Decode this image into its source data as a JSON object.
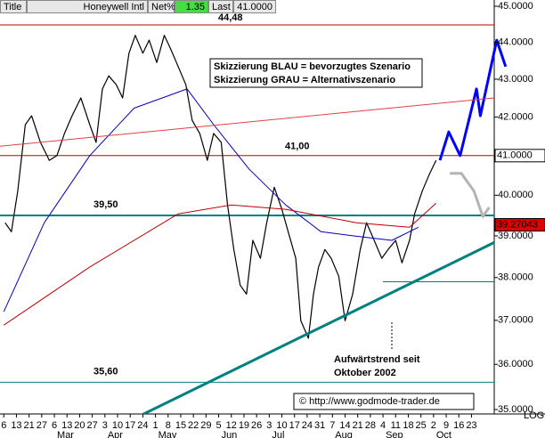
{
  "header": {
    "title": "Title",
    "name": "Honeywell Intl",
    "net_label": "Net%",
    "net_value": "1.35",
    "last_label": "Last",
    "last_value": "41.0000"
  },
  "chart_data": {
    "type": "line",
    "log_scale": true,
    "xlim": [
      -0.3,
      38.8
    ],
    "ylim": [
      35,
      45
    ],
    "xticks": [
      {
        "value": 0,
        "label": "6"
      },
      {
        "value": 1,
        "label": "13"
      },
      {
        "value": 2,
        "label": "21"
      },
      {
        "value": 3,
        "label": "27"
      },
      {
        "value": 4,
        "label": "6"
      },
      {
        "value": 5,
        "label": "13"
      },
      {
        "value": 6,
        "label": "20"
      },
      {
        "value": 7,
        "label": "27"
      },
      {
        "value": 8,
        "label": "3"
      },
      {
        "value": 9,
        "label": "10"
      },
      {
        "value": 10,
        "label": "17"
      },
      {
        "value": 11,
        "label": "24"
      },
      {
        "value": 12,
        "label": "1"
      },
      {
        "value": 13,
        "label": "8"
      },
      {
        "value": 14,
        "label": "15"
      },
      {
        "value": 15,
        "label": "22"
      },
      {
        "value": 16,
        "label": "29"
      },
      {
        "value": 17,
        "label": "5"
      },
      {
        "value": 18,
        "label": "12"
      },
      {
        "value": 19,
        "label": "19"
      },
      {
        "value": 20,
        "label": "26"
      },
      {
        "value": 21,
        "label": "3"
      },
      {
        "value": 22,
        "label": "10"
      },
      {
        "value": 23,
        "label": "17"
      },
      {
        "value": 24,
        "label": "24"
      },
      {
        "value": 25,
        "label": "31"
      },
      {
        "value": 26,
        "label": "7"
      },
      {
        "value": 27,
        "label": "14"
      },
      {
        "value": 28,
        "label": "21"
      },
      {
        "value": 29,
        "label": "28"
      },
      {
        "value": 30,
        "label": "4"
      },
      {
        "value": 31,
        "label": "11"
      },
      {
        "value": 32,
        "label": "18"
      },
      {
        "value": 33,
        "label": "25"
      },
      {
        "value": 34,
        "label": "2"
      },
      {
        "value": 35,
        "label": "9"
      },
      {
        "value": 36,
        "label": "16"
      },
      {
        "value": 37,
        "label": "23"
      }
    ],
    "month_ticks": [
      {
        "value": 4,
        "label": "Mar"
      },
      {
        "value": 8,
        "label": "Apr"
      },
      {
        "value": 12,
        "label": "May"
      },
      {
        "value": 17,
        "label": "Jun"
      },
      {
        "value": 21,
        "label": "Jul"
      },
      {
        "value": 26,
        "label": "Aug"
      },
      {
        "value": 30,
        "label": "Sep"
      },
      {
        "value": 34,
        "label": "Oct"
      }
    ],
    "yticks": [
      {
        "value": 35,
        "label": "35.0000"
      },
      {
        "value": 36,
        "label": "36.0000"
      },
      {
        "value": 37,
        "label": "37.0000"
      },
      {
        "value": 38,
        "label": "38.0000"
      },
      {
        "value": 39,
        "label": "39.0000"
      },
      {
        "value": 40,
        "label": "40.0000"
      },
      {
        "value": 41,
        "label": "41.0000"
      },
      {
        "value": 42,
        "label": "42.0000"
      },
      {
        "value": 43,
        "label": "43.0000"
      },
      {
        "value": 44,
        "label": "44.0000"
      },
      {
        "value": 45,
        "label": "45.0000"
      }
    ],
    "scale_label": "LOG",
    "series": [
      {
        "color": "#000000",
        "x": [
          0.1,
          0.6,
          1.1,
          1.7,
          2.2,
          2.9,
          3.6,
          4.2,
          4.8,
          5.4,
          6.1,
          6.8,
          7.3,
          7.8,
          8.3,
          8.9,
          9.4,
          9.9,
          10.4,
          11.0,
          11.5,
          12.1,
          12.7,
          13.2,
          13.8,
          14.4,
          14.9,
          15.5,
          16.1,
          16.6,
          17.2,
          17.7,
          18.2,
          18.7,
          19.2,
          19.7,
          20.3,
          20.8,
          21.4,
          22.0,
          22.5,
          23.1,
          23.5,
          24.1,
          24.5,
          24.9,
          25.4,
          25.9,
          26.5,
          27.0,
          27.6,
          28.2,
          28.7,
          29.3,
          29.9,
          30.4,
          31.0,
          31.5,
          32.1,
          32.5,
          33.1,
          33.7,
          34.2
        ],
        "values": [
          39.32,
          39.1,
          40.1,
          41.8,
          42.03,
          41.34,
          40.88,
          41.0,
          41.57,
          42.03,
          42.5,
          41.8,
          41.34,
          42.74,
          43.09,
          42.85,
          42.5,
          43.7,
          44.19,
          43.7,
          44.06,
          43.45,
          44.19,
          43.82,
          43.34,
          42.85,
          41.91,
          41.57,
          40.88,
          41.57,
          41.34,
          39.76,
          38.67,
          37.82,
          37.61,
          38.89,
          38.46,
          39.32,
          40.2,
          39.65,
          39.1,
          38.46,
          36.99,
          36.59,
          37.61,
          38.25,
          38.67,
          38.46,
          38.03,
          36.99,
          37.61,
          38.67,
          39.32,
          38.89,
          38.46,
          38.67,
          38.89,
          38.35,
          38.89,
          39.54,
          40.1,
          40.55,
          40.88
        ]
      },
      {
        "color": "#0000c0",
        "x": [
          0,
          3.2,
          6.8,
          10.3,
          14.5,
          16.6,
          19.4,
          22.3,
          25.1,
          27.9,
          30.7,
          32.8
        ],
        "values": [
          37.2,
          39.32,
          41.0,
          42.23,
          42.74,
          41.8,
          40.66,
          39.76,
          39.1,
          38.99,
          38.89,
          39.21
        ]
      },
      {
        "color": "#c00000",
        "x": [
          0,
          6.8,
          13.8,
          18.0,
          22.3,
          27.9,
          32.1,
          34.2
        ],
        "values": [
          36.89,
          38.25,
          39.54,
          39.76,
          39.65,
          39.32,
          39.21,
          39.8
        ]
      }
    ],
    "sketches": [
      {
        "color": "#0000ff",
        "x": [
          34.5,
          35.2,
          36.1,
          37.4,
          37.7,
          39.0,
          39.7
        ],
        "values": [
          40.88,
          41.61,
          41.0,
          42.74,
          42.03,
          44.06,
          43.34
        ]
      },
      {
        "color": "#b4b4b4",
        "x": [
          35.3,
          36.2,
          37.2,
          37.9,
          38.4
        ],
        "values": [
          40.55,
          40.55,
          40.1,
          39.47,
          39.7
        ]
      },
      {
        "color": "#008080",
        "x": [
          10.3,
          38.8
        ],
        "values": [
          34.8,
          38.84
        ]
      },
      {
        "color": "#e04040",
        "x": [
          -0.3,
          38.8
        ],
        "values": [
          41.24,
          42.5
        ]
      }
    ],
    "levels": [
      {
        "value": 44.48,
        "label": "44,48",
        "color": "#c00000"
      },
      {
        "value": 41.0,
        "label": "41,00",
        "color": "#c00000"
      },
      {
        "value": 39.5,
        "label": "39,50",
        "color": "#008080"
      },
      {
        "value": 35.6,
        "label": "35,60",
        "color": "#008080"
      },
      {
        "value": 37.9,
        "color": "#008080"
      }
    ],
    "price_markers": [
      {
        "value": 41.0,
        "label": "41.0000",
        "color": "#ffffff"
      },
      {
        "value": 39.27043,
        "label": "39.27043",
        "color": "#e00000"
      }
    ],
    "annotations": [
      "Skizzierung BLAU = bevorzugtes Szenario",
      "Skizzierung GRAU = Alternativszenario",
      "Aufwärtstrend seit",
      "Oktober 2002",
      "© http://www.godmode-trader.de"
    ]
  }
}
